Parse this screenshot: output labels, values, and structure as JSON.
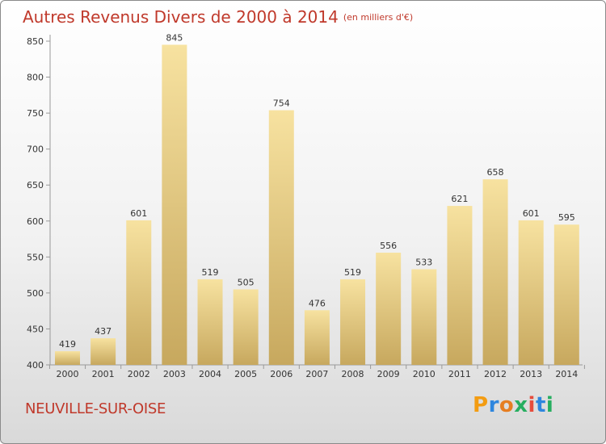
{
  "title": "Autres Revenus Divers de 2000 à 2014",
  "subtitle": "(en milliers d'€)",
  "place": "NEUVILLE-SUR-OISE",
  "logo": {
    "text": "Proxiti",
    "letters": [
      "P",
      "r",
      "o",
      "x",
      "i",
      "t",
      "i"
    ],
    "colors": [
      "#f39c12",
      "#2e86de",
      "#e67e22",
      "#27ae60",
      "#e74c3c",
      "#2e86de",
      "#27ae60"
    ]
  },
  "colors": {
    "bar_top": "#f7e2a0",
    "bar_bottom": "#c7a85e",
    "title": "#c0392b"
  },
  "chart_data": {
    "type": "bar",
    "title": "Autres Revenus Divers de 2000 à 2014",
    "subtitle": "(en milliers d'€)",
    "categories": [
      "2000",
      "2001",
      "2002",
      "2003",
      "2004",
      "2005",
      "2006",
      "2007",
      "2008",
      "2009",
      "2010",
      "2011",
      "2012",
      "2013",
      "2014"
    ],
    "values": [
      419,
      437,
      601,
      845,
      519,
      505,
      754,
      476,
      519,
      556,
      533,
      621,
      658,
      601,
      595
    ],
    "ylim": [
      400,
      850
    ],
    "yticks": [
      400,
      450,
      500,
      550,
      600,
      650,
      700,
      750,
      800,
      850
    ],
    "grid": false,
    "legend": "none"
  }
}
